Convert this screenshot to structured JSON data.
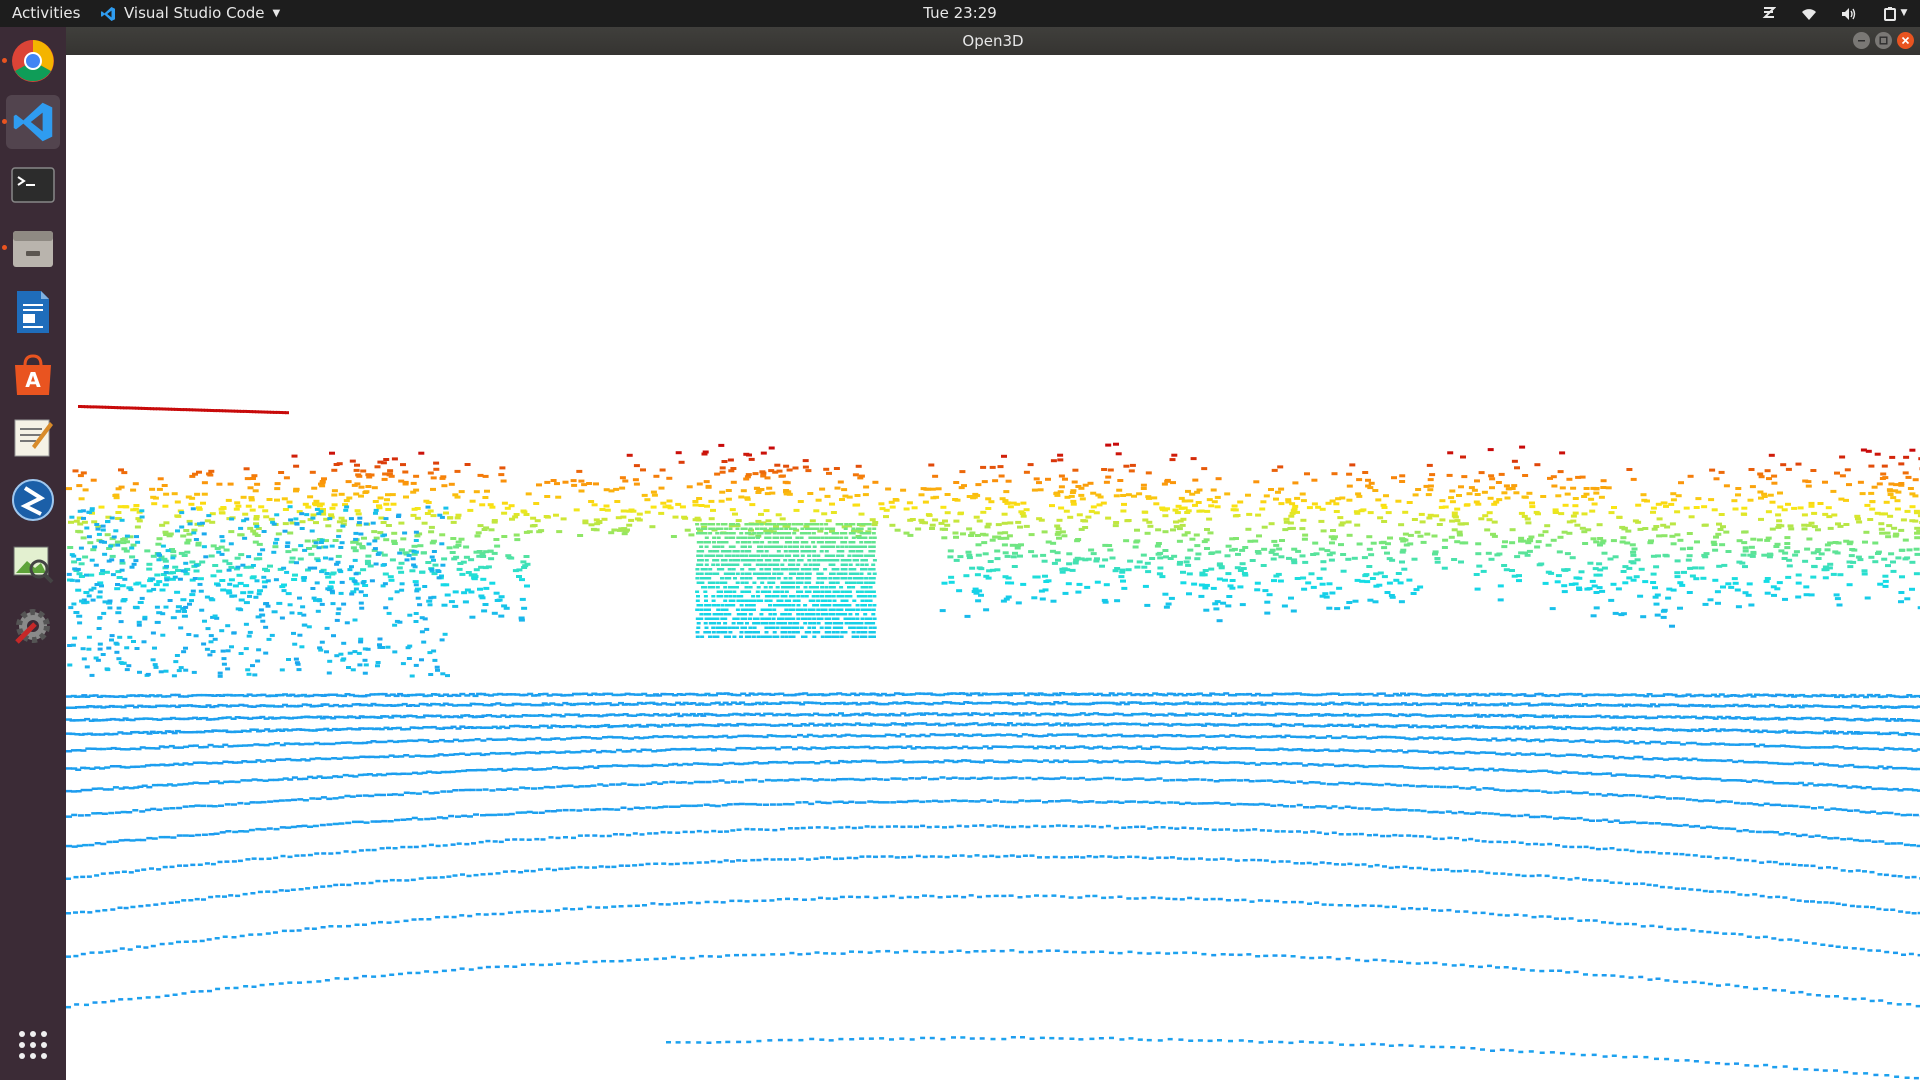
{
  "topbar": {
    "activities_label": "Activities",
    "app_menu_label": "Visual Studio Code",
    "clock": "Tue 23:29",
    "tray_icons": [
      "zotero-icon",
      "wifi-icon",
      "volume-icon",
      "power-icon",
      "chevron-down-icon"
    ]
  },
  "dock": {
    "items": [
      {
        "name": "dock-chrome",
        "icon": "chrome-icon",
        "running": true
      },
      {
        "name": "dock-vscode",
        "icon": "vscode-icon",
        "running": true,
        "active": true
      },
      {
        "name": "dock-terminal",
        "icon": "terminal-icon",
        "running": false
      },
      {
        "name": "dock-files",
        "icon": "files-icon",
        "running": true
      },
      {
        "name": "dock-writer",
        "icon": "writer-icon",
        "running": false
      },
      {
        "name": "dock-software",
        "icon": "software-center-icon",
        "running": false
      },
      {
        "name": "dock-text-editor",
        "icon": "text-editor-icon",
        "running": false
      },
      {
        "name": "dock-app-blue",
        "icon": "app-blue-icon",
        "running": false
      },
      {
        "name": "dock-image-viewer",
        "icon": "image-viewer-icon",
        "running": false
      },
      {
        "name": "dock-settings",
        "icon": "settings-icon",
        "running": false
      },
      {
        "name": "dock-show-apps",
        "icon": "grid-icon",
        "running": false
      }
    ]
  },
  "window": {
    "title": "Open3D",
    "controls": [
      "minimize-icon",
      "maximize-icon",
      "close-icon"
    ]
  },
  "colors": {
    "topbar_bg": "#1d1d1d",
    "dock_bg": "#3b2b36",
    "ubuntu_orange": "#e95420",
    "point_low": "#18a0e8",
    "point_high": "#d01010",
    "canvas_bg": "#ffffff"
  }
}
